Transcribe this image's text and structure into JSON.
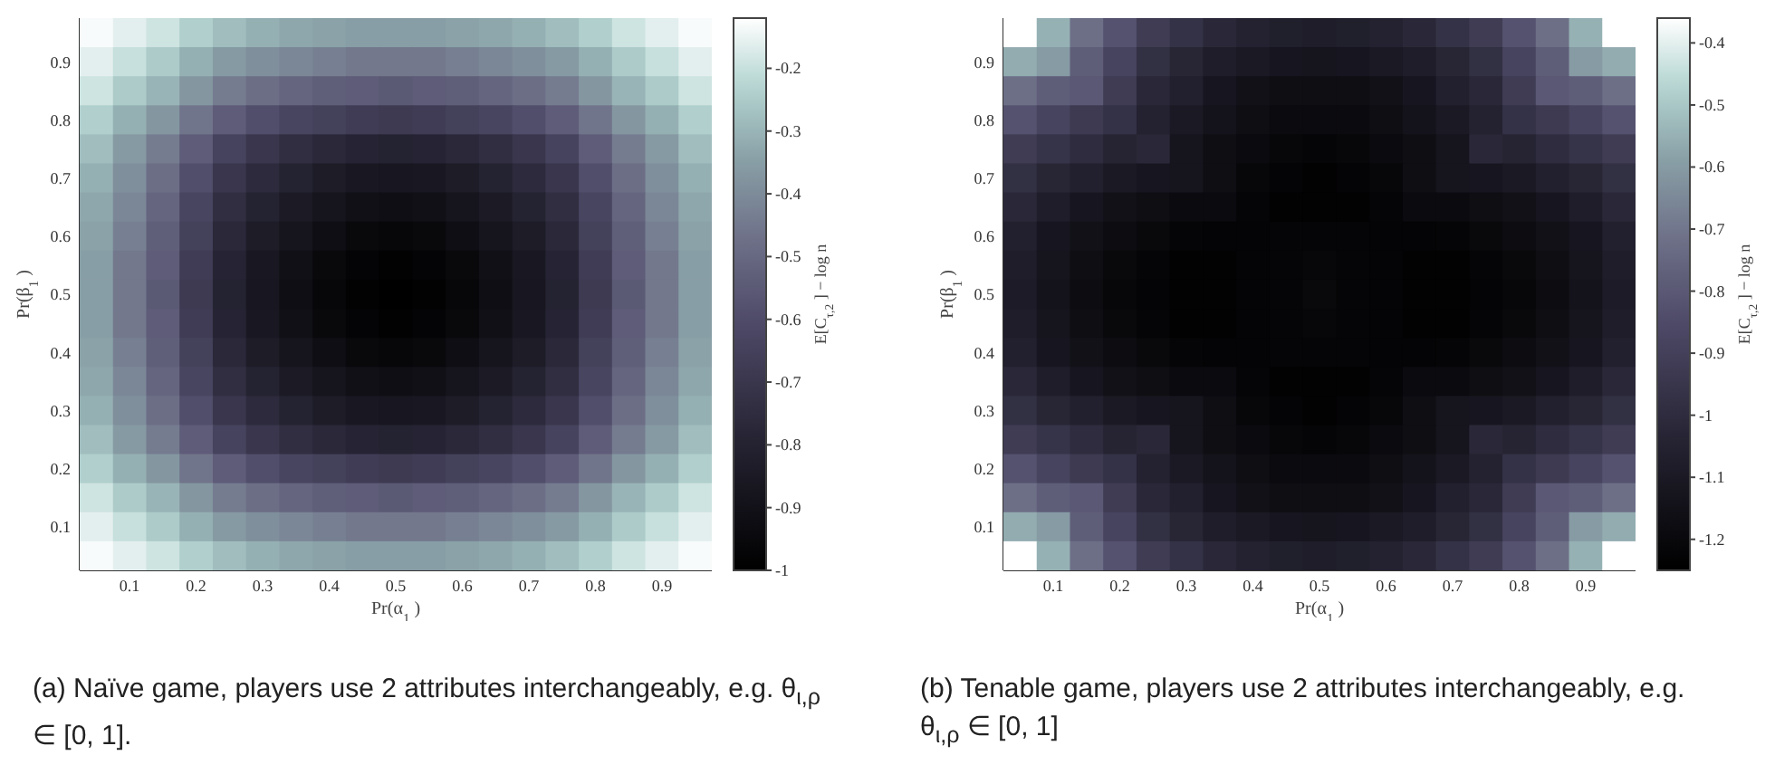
{
  "chart_data": [
    {
      "type": "heatmap",
      "xlabel": "Pr(α$_{1}$)",
      "ylabel": "Pr(β$_{1}$)",
      "clabel": "E[C$_{τ,2}$] − log n",
      "xlim": [
        0.025,
        0.975
      ],
      "xticks": [
        0.1,
        0.2,
        0.3,
        0.4,
        0.5,
        0.6,
        0.7,
        0.8,
        0.9
      ],
      "ylim": [
        0.025,
        0.975
      ],
      "yticks": [
        0.1,
        0.2,
        0.3,
        0.4,
        0.5,
        0.6,
        0.7,
        0.8,
        0.9
      ],
      "clim": [
        -1,
        -0.12
      ],
      "cticks": [
        -1,
        -0.9,
        -0.8,
        -0.7,
        -0.6,
        -0.5,
        -0.4,
        -0.3,
        -0.2
      ],
      "cells": [
        [
          -0.13,
          -0.16,
          -0.19,
          -0.24,
          -0.28,
          -0.31,
          -0.33,
          -0.34,
          -0.35,
          -0.35,
          -0.35,
          -0.34,
          -0.33,
          -0.31,
          -0.28,
          -0.24,
          -0.19,
          -0.16,
          -0.13
        ],
        [
          -0.16,
          -0.2,
          -0.25,
          -0.31,
          -0.36,
          -0.39,
          -0.41,
          -0.43,
          -0.45,
          -0.45,
          -0.45,
          -0.43,
          -0.41,
          -0.39,
          -0.36,
          -0.31,
          -0.25,
          -0.2,
          -0.16
        ],
        [
          -0.19,
          -0.25,
          -0.3,
          -0.37,
          -0.44,
          -0.48,
          -0.51,
          -0.53,
          -0.54,
          -0.55,
          -0.54,
          -0.53,
          -0.51,
          -0.48,
          -0.44,
          -0.37,
          -0.3,
          -0.25,
          -0.19
        ],
        [
          -0.24,
          -0.31,
          -0.37,
          -0.46,
          -0.54,
          -0.59,
          -0.63,
          -0.65,
          -0.67,
          -0.68,
          -0.67,
          -0.65,
          -0.63,
          -0.59,
          -0.54,
          -0.46,
          -0.37,
          -0.31,
          -0.24
        ],
        [
          -0.28,
          -0.36,
          -0.44,
          -0.54,
          -0.64,
          -0.7,
          -0.74,
          -0.77,
          -0.79,
          -0.8,
          -0.79,
          -0.77,
          -0.74,
          -0.7,
          -0.64,
          -0.54,
          -0.44,
          -0.36,
          -0.28
        ],
        [
          -0.31,
          -0.39,
          -0.48,
          -0.59,
          -0.7,
          -0.76,
          -0.8,
          -0.84,
          -0.86,
          -0.87,
          -0.86,
          -0.84,
          -0.8,
          -0.76,
          -0.7,
          -0.59,
          -0.48,
          -0.39,
          -0.31
        ],
        [
          -0.33,
          -0.41,
          -0.51,
          -0.63,
          -0.74,
          -0.8,
          -0.85,
          -0.88,
          -0.91,
          -0.92,
          -0.91,
          -0.88,
          -0.85,
          -0.8,
          -0.74,
          -0.63,
          -0.51,
          -0.41,
          -0.33
        ],
        [
          -0.34,
          -0.43,
          -0.53,
          -0.65,
          -0.77,
          -0.84,
          -0.88,
          -0.92,
          -0.95,
          -0.96,
          -0.95,
          -0.92,
          -0.88,
          -0.84,
          -0.77,
          -0.65,
          -0.53,
          -0.43,
          -0.34
        ],
        [
          -0.35,
          -0.45,
          -0.54,
          -0.67,
          -0.79,
          -0.86,
          -0.91,
          -0.95,
          -0.98,
          -0.99,
          -0.98,
          -0.95,
          -0.91,
          -0.86,
          -0.79,
          -0.67,
          -0.54,
          -0.45,
          -0.35
        ],
        [
          -0.35,
          -0.45,
          -0.55,
          -0.68,
          -0.8,
          -0.87,
          -0.92,
          -0.96,
          -0.99,
          -1,
          -0.99,
          -0.96,
          -0.92,
          -0.87,
          -0.8,
          -0.68,
          -0.55,
          -0.45,
          -0.35
        ],
        [
          -0.35,
          -0.45,
          -0.54,
          -0.67,
          -0.79,
          -0.86,
          -0.91,
          -0.95,
          -0.98,
          -0.99,
          -0.98,
          -0.95,
          -0.91,
          -0.86,
          -0.79,
          -0.67,
          -0.54,
          -0.45,
          -0.35
        ],
        [
          -0.34,
          -0.43,
          -0.53,
          -0.65,
          -0.77,
          -0.84,
          -0.88,
          -0.92,
          -0.95,
          -0.96,
          -0.95,
          -0.92,
          -0.88,
          -0.84,
          -0.77,
          -0.65,
          -0.53,
          -0.43,
          -0.34
        ],
        [
          -0.33,
          -0.41,
          -0.51,
          -0.63,
          -0.74,
          -0.8,
          -0.85,
          -0.88,
          -0.91,
          -0.92,
          -0.91,
          -0.88,
          -0.85,
          -0.8,
          -0.74,
          -0.63,
          -0.51,
          -0.41,
          -0.33
        ],
        [
          -0.31,
          -0.39,
          -0.48,
          -0.59,
          -0.7,
          -0.76,
          -0.8,
          -0.84,
          -0.86,
          -0.87,
          -0.86,
          -0.84,
          -0.8,
          -0.76,
          -0.7,
          -0.59,
          -0.48,
          -0.39,
          -0.31
        ],
        [
          -0.28,
          -0.36,
          -0.44,
          -0.54,
          -0.64,
          -0.7,
          -0.74,
          -0.77,
          -0.79,
          -0.8,
          -0.79,
          -0.77,
          -0.74,
          -0.7,
          -0.64,
          -0.54,
          -0.44,
          -0.36,
          -0.28
        ],
        [
          -0.24,
          -0.31,
          -0.37,
          -0.46,
          -0.54,
          -0.59,
          -0.63,
          -0.65,
          -0.67,
          -0.68,
          -0.67,
          -0.65,
          -0.63,
          -0.59,
          -0.54,
          -0.46,
          -0.37,
          -0.31,
          -0.24
        ],
        [
          -0.19,
          -0.25,
          -0.3,
          -0.37,
          -0.44,
          -0.48,
          -0.51,
          -0.53,
          -0.54,
          -0.55,
          -0.54,
          -0.53,
          -0.51,
          -0.48,
          -0.44,
          -0.37,
          -0.3,
          -0.25,
          -0.19
        ],
        [
          -0.16,
          -0.2,
          -0.25,
          -0.31,
          -0.36,
          -0.39,
          -0.41,
          -0.43,
          -0.45,
          -0.45,
          -0.45,
          -0.43,
          -0.41,
          -0.39,
          -0.36,
          -0.31,
          -0.25,
          -0.2,
          -0.16
        ],
        [
          -0.13,
          -0.16,
          -0.19,
          -0.24,
          -0.28,
          -0.31,
          -0.33,
          -0.34,
          -0.35,
          -0.35,
          -0.35,
          -0.34,
          -0.33,
          -0.31,
          -0.28,
          -0.24,
          -0.19,
          -0.16,
          -0.13
        ]
      ],
      "x": [
        0.05,
        0.1,
        0.15,
        0.2,
        0.25,
        0.3,
        0.35,
        0.4,
        0.45,
        0.5,
        0.55,
        0.6,
        0.65,
        0.7,
        0.75,
        0.8,
        0.85,
        0.9,
        0.95
      ],
      "y": [
        0.95,
        0.9,
        0.85,
        0.8,
        0.75,
        0.7,
        0.65,
        0.6,
        0.55,
        0.5,
        0.45,
        0.4,
        0.35,
        0.3,
        0.25,
        0.2,
        0.15,
        0.1,
        0.05
      ],
      "annotations": [
        "(a) Naïve game, players use 2 attributes interchangeably, e.g. θ$_{ι,ρ}$ ∈ [0, 1]."
      ]
    },
    {
      "type": "heatmap",
      "xlabel": "Pr(α$_{1}$)",
      "ylabel": "Pr(β$_{1}$)",
      "clabel": "E[C$_{τ,2}$] − log n",
      "xlim": [
        0.025,
        0.975
      ],
      "xticks": [
        0.1,
        0.2,
        0.3,
        0.4,
        0.5,
        0.6,
        0.7,
        0.8,
        0.9
      ],
      "ylim": [
        0.025,
        0.975
      ],
      "yticks": [
        0.1,
        0.2,
        0.3,
        0.4,
        0.5,
        0.6,
        0.7,
        0.8,
        0.9
      ],
      "clim": [
        -1.25,
        -0.36
      ],
      "cticks": [
        -1.2,
        -1.1,
        -1,
        -0.9,
        -0.8,
        -0.7,
        -0.6,
        -0.5,
        -0.4
      ],
      "cells": [
        [
          -0.36,
          -0.55,
          -0.72,
          -0.82,
          -0.92,
          -0.97,
          -1.02,
          -1.05,
          -1.07,
          -1.08,
          -1.07,
          -1.05,
          -1.02,
          -0.97,
          -0.92,
          -0.82,
          -0.72,
          -0.55,
          -0.36
        ],
        [
          -0.56,
          -0.6,
          -0.78,
          -0.88,
          -0.98,
          -1.03,
          -1.08,
          -1.1,
          -1.12,
          -1.13,
          -1.12,
          -1.1,
          -1.08,
          -1.03,
          -0.98,
          -0.88,
          -0.78,
          -0.6,
          -0.56
        ],
        [
          -0.72,
          -0.78,
          -0.8,
          -0.92,
          -1.02,
          -1.06,
          -1.12,
          -1.15,
          -1.17,
          -1.17,
          -1.17,
          -1.15,
          -1.12,
          -1.06,
          -1.02,
          -0.92,
          -0.8,
          -0.78,
          -0.72
        ],
        [
          -0.82,
          -0.88,
          -0.93,
          -0.97,
          -1.05,
          -1.1,
          -1.14,
          -1.17,
          -1.19,
          -1.19,
          -1.19,
          -1.17,
          -1.14,
          -1.1,
          -1.05,
          -0.97,
          -0.93,
          -0.88,
          -0.82
        ],
        [
          -0.92,
          -0.96,
          -1,
          -1.04,
          -1.02,
          -1.13,
          -1.17,
          -1.19,
          -1.21,
          -1.22,
          -1.21,
          -1.19,
          -1.17,
          -1.13,
          -1.02,
          -1.04,
          -1,
          -0.96,
          -0.92
        ],
        [
          -0.98,
          -1.03,
          -1.06,
          -1.1,
          -1.12,
          -1.13,
          -1.17,
          -1.21,
          -1.23,
          -1.24,
          -1.23,
          -1.21,
          -1.17,
          -1.13,
          -1.12,
          -1.1,
          -1.06,
          -1.03,
          -0.98
        ],
        [
          -1.02,
          -1.08,
          -1.12,
          -1.15,
          -1.17,
          -1.19,
          -1.19,
          -1.22,
          -1.24,
          -1.24,
          -1.24,
          -1.22,
          -1.19,
          -1.19,
          -1.17,
          -1.15,
          -1.12,
          -1.08,
          -1.02
        ],
        [
          -1.06,
          -1.12,
          -1.15,
          -1.18,
          -1.2,
          -1.22,
          -1.23,
          -1.23,
          -1.22,
          -1.22,
          -1.22,
          -1.23,
          -1.23,
          -1.22,
          -1.2,
          -1.18,
          -1.15,
          -1.12,
          -1.06
        ],
        [
          -1.08,
          -1.13,
          -1.17,
          -1.2,
          -1.22,
          -1.24,
          -1.24,
          -1.23,
          -1.22,
          -1.21,
          -1.22,
          -1.23,
          -1.24,
          -1.24,
          -1.22,
          -1.2,
          -1.17,
          -1.13,
          -1.08
        ],
        [
          -1.09,
          -1.14,
          -1.18,
          -1.21,
          -1.23,
          -1.24,
          -1.24,
          -1.23,
          -1.22,
          -1.2,
          -1.22,
          -1.23,
          -1.24,
          -1.24,
          -1.23,
          -1.21,
          -1.18,
          -1.14,
          -1.09
        ],
        [
          -1.08,
          -1.13,
          -1.17,
          -1.2,
          -1.22,
          -1.24,
          -1.24,
          -1.23,
          -1.22,
          -1.21,
          -1.22,
          -1.23,
          -1.24,
          -1.24,
          -1.22,
          -1.2,
          -1.17,
          -1.13,
          -1.08
        ],
        [
          -1.06,
          -1.12,
          -1.15,
          -1.18,
          -1.2,
          -1.22,
          -1.23,
          -1.23,
          -1.22,
          -1.22,
          -1.22,
          -1.23,
          -1.23,
          -1.22,
          -1.2,
          -1.18,
          -1.15,
          -1.12,
          -1.06
        ],
        [
          -1.02,
          -1.08,
          -1.12,
          -1.15,
          -1.17,
          -1.19,
          -1.19,
          -1.22,
          -1.24,
          -1.24,
          -1.24,
          -1.22,
          -1.19,
          -1.19,
          -1.17,
          -1.15,
          -1.12,
          -1.08,
          -1.02
        ],
        [
          -0.98,
          -1.03,
          -1.06,
          -1.1,
          -1.12,
          -1.13,
          -1.17,
          -1.21,
          -1.23,
          -1.24,
          -1.23,
          -1.21,
          -1.17,
          -1.13,
          -1.12,
          -1.1,
          -1.06,
          -1.03,
          -0.98
        ],
        [
          -0.92,
          -0.96,
          -1,
          -1.04,
          -1.02,
          -1.13,
          -1.17,
          -1.19,
          -1.21,
          -1.22,
          -1.21,
          -1.19,
          -1.17,
          -1.13,
          -1.02,
          -1.04,
          -1,
          -0.96,
          -0.92
        ],
        [
          -0.82,
          -0.88,
          -0.93,
          -0.97,
          -1.05,
          -1.1,
          -1.14,
          -1.17,
          -1.19,
          -1.19,
          -1.19,
          -1.17,
          -1.14,
          -1.1,
          -1.05,
          -0.97,
          -0.93,
          -0.88,
          -0.82
        ],
        [
          -0.72,
          -0.78,
          -0.8,
          -0.92,
          -1.02,
          -1.06,
          -1.12,
          -1.15,
          -1.17,
          -1.17,
          -1.17,
          -1.15,
          -1.12,
          -1.06,
          -1.02,
          -0.92,
          -0.8,
          -0.78,
          -0.72
        ],
        [
          -0.56,
          -0.6,
          -0.78,
          -0.88,
          -0.98,
          -1.03,
          -1.08,
          -1.1,
          -1.12,
          -1.13,
          -1.12,
          -1.1,
          -1.08,
          -1.03,
          -0.98,
          -0.88,
          -0.78,
          -0.6,
          -0.56
        ],
        [
          -0.36,
          -0.55,
          -0.72,
          -0.82,
          -0.92,
          -0.97,
          -1.02,
          -1.05,
          -1.07,
          -1.08,
          -1.07,
          -1.05,
          -1.02,
          -0.97,
          -0.92,
          -0.82,
          -0.72,
          -0.55,
          -0.36
        ]
      ],
      "x": [
        0.05,
        0.1,
        0.15,
        0.2,
        0.25,
        0.3,
        0.35,
        0.4,
        0.45,
        0.5,
        0.55,
        0.6,
        0.65,
        0.7,
        0.75,
        0.8,
        0.85,
        0.9,
        0.95
      ],
      "y": [
        0.95,
        0.9,
        0.85,
        0.8,
        0.75,
        0.7,
        0.65,
        0.6,
        0.55,
        0.5,
        0.45,
        0.4,
        0.35,
        0.3,
        0.25,
        0.2,
        0.15,
        0.1,
        0.05
      ],
      "annotations": [
        "(b) Tenable game, players use 2 attributes interchangeably, e.g. θ$_{ι,ρ}$ ∈ [0, 1]"
      ]
    }
  ]
}
